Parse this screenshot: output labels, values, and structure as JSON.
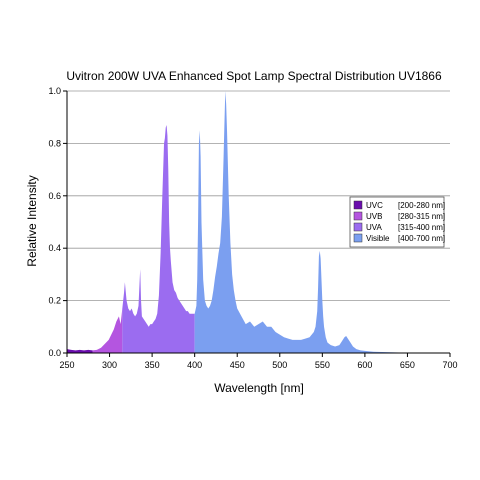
{
  "chart_data": {
    "type": "area",
    "title": "Uvitron 200W UVA Enhanced Spot Lamp Spectral Distribution UV1866",
    "xlabel": "Wavelength [nm]",
    "ylabel": "Relative Intensity",
    "xlim": [
      250,
      700
    ],
    "ylim": [
      0,
      1.0
    ],
    "x_ticks": [
      250,
      300,
      350,
      400,
      450,
      500,
      550,
      600,
      650,
      700
    ],
    "x_tick_labels": [
      "250",
      "300",
      "350",
      "400",
      "450",
      "500",
      "550",
      "600",
      "650",
      "700"
    ],
    "y_ticks": [
      0,
      0.2,
      0.4,
      0.6,
      0.8,
      1.0
    ],
    "y_tick_labels": [
      "0.0",
      "0.2",
      "0.4",
      "0.6",
      "0.8",
      "1.0"
    ],
    "grid": "horizontal",
    "legend_position": "right",
    "bands": [
      {
        "name": "UVC",
        "range_label": "[200-280 nm]",
        "from": 250,
        "to": 280,
        "color": "#6a0dad"
      },
      {
        "name": "UVB",
        "range_label": "[280-315 nm]",
        "from": 280,
        "to": 315,
        "color": "#b455e0"
      },
      {
        "name": "UVA",
        "range_label": "[315-400 nm]",
        "from": 315,
        "to": 400,
        "color": "#9b6cf0"
      },
      {
        "name": "Visible",
        "range_label": "[400-700 nm]",
        "from": 400,
        "to": 700,
        "color": "#7b9ff0"
      }
    ],
    "spectrum": {
      "x": [
        250,
        255,
        260,
        265,
        270,
        275,
        280,
        285,
        290,
        293,
        296,
        299,
        302,
        305,
        308,
        311,
        313,
        315,
        317,
        318,
        320,
        322,
        324,
        326,
        328,
        330,
        332,
        334,
        335,
        336,
        337,
        338,
        340,
        342,
        344,
        346,
        348,
        350,
        352,
        354,
        356,
        358,
        360,
        362,
        364,
        365,
        366,
        367,
        368,
        369,
        370,
        371,
        372,
        374,
        376,
        378,
        380,
        382,
        384,
        386,
        388,
        390,
        392,
        394,
        396,
        398,
        400,
        402,
        403,
        404,
        405,
        406,
        407,
        408,
        410,
        412,
        414,
        416,
        418,
        420,
        422,
        424,
        426,
        428,
        430,
        432,
        434,
        435,
        436,
        437,
        438,
        440,
        442,
        444,
        446,
        448,
        450,
        455,
        460,
        465,
        470,
        475,
        480,
        485,
        490,
        495,
        500,
        505,
        510,
        515,
        520,
        525,
        530,
        535,
        540,
        542,
        544,
        545,
        546,
        547,
        548,
        549,
        550,
        551,
        552,
        554,
        556,
        558,
        560,
        565,
        570,
        573,
        576,
        578,
        580,
        583,
        586,
        590,
        595,
        600,
        610,
        620,
        630,
        640,
        650,
        660,
        670,
        680,
        690,
        700
      ],
      "y": [
        0.015,
        0.012,
        0.01,
        0.012,
        0.01,
        0.012,
        0.01,
        0.012,
        0.02,
        0.03,
        0.04,
        0.05,
        0.07,
        0.09,
        0.12,
        0.14,
        0.11,
        0.17,
        0.23,
        0.27,
        0.2,
        0.17,
        0.16,
        0.17,
        0.15,
        0.14,
        0.15,
        0.18,
        0.25,
        0.32,
        0.2,
        0.14,
        0.13,
        0.12,
        0.11,
        0.1,
        0.11,
        0.11,
        0.12,
        0.13,
        0.15,
        0.22,
        0.38,
        0.6,
        0.8,
        0.82,
        0.86,
        0.87,
        0.83,
        0.7,
        0.5,
        0.4,
        0.35,
        0.27,
        0.24,
        0.23,
        0.21,
        0.2,
        0.19,
        0.18,
        0.17,
        0.16,
        0.16,
        0.15,
        0.15,
        0.15,
        0.15,
        0.18,
        0.28,
        0.5,
        0.8,
        0.85,
        0.75,
        0.5,
        0.28,
        0.2,
        0.18,
        0.17,
        0.18,
        0.2,
        0.24,
        0.29,
        0.33,
        0.38,
        0.42,
        0.52,
        0.75,
        0.88,
        1.0,
        0.95,
        0.85,
        0.6,
        0.42,
        0.3,
        0.24,
        0.2,
        0.17,
        0.14,
        0.11,
        0.12,
        0.1,
        0.11,
        0.12,
        0.1,
        0.1,
        0.08,
        0.07,
        0.06,
        0.055,
        0.05,
        0.05,
        0.05,
        0.055,
        0.06,
        0.08,
        0.1,
        0.16,
        0.25,
        0.37,
        0.39,
        0.36,
        0.28,
        0.2,
        0.14,
        0.1,
        0.06,
        0.04,
        0.035,
        0.03,
        0.025,
        0.03,
        0.045,
        0.06,
        0.065,
        0.055,
        0.04,
        0.025,
        0.015,
        0.01,
        0.008,
        0.005,
        0.004,
        0.003,
        0.002,
        0.002,
        0.002,
        0.001,
        0.001,
        0.001,
        0.001
      ]
    }
  }
}
